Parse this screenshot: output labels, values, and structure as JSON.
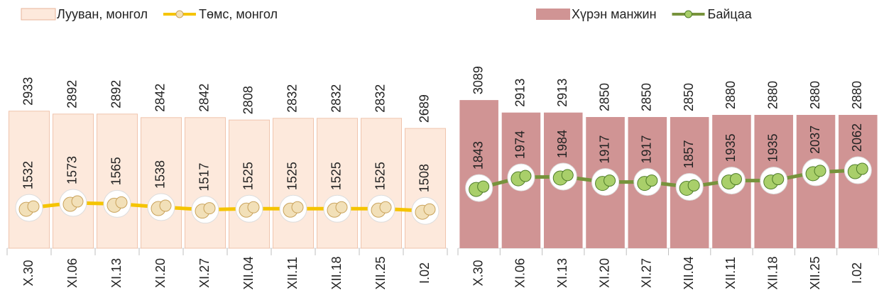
{
  "chart_data": [
    {
      "type": "combo",
      "categories": [
        "X.30",
        "XI.06",
        "XI.13",
        "XI.20",
        "XI.27",
        "XII.04",
        "XII.11",
        "XII.18",
        "XII.25",
        "I.02"
      ],
      "series": [
        {
          "name": "Лууван, монгол",
          "type": "bar",
          "color": "#fde9dc",
          "values": [
            2933,
            2892,
            2892,
            2842,
            2842,
            2808,
            2832,
            2832,
            2832,
            2689
          ]
        },
        {
          "name": "Төмс, монгол",
          "type": "line",
          "axis": "y2",
          "color": "#f5c400",
          "values": [
            1532,
            1573,
            1565,
            1538,
            1517,
            1525,
            1525,
            1525,
            1525,
            1508
          ]
        }
      ],
      "ylim": [
        1000,
        3400
      ],
      "y2lim": [
        1200,
        2600
      ]
    },
    {
      "type": "combo",
      "categories": [
        "X.30",
        "XI.06",
        "XI.13",
        "XI.20",
        "XI.27",
        "XII.04",
        "XII.11",
        "XII.18",
        "XII.25",
        "I.02"
      ],
      "series": [
        {
          "name": "Хүрэн манжин",
          "type": "bar",
          "color": "#d09494",
          "values": [
            3089,
            2913,
            2913,
            2850,
            2850,
            2850,
            2880,
            2880,
            2880,
            2880
          ]
        },
        {
          "name": "Байцаа",
          "type": "line",
          "axis": "y2",
          "color": "#77933c",
          "values": [
            1843,
            1974,
            1984,
            1917,
            1917,
            1857,
            1935,
            1935,
            2037,
            2062
          ]
        }
      ],
      "ylim": [
        1000,
        3400
      ],
      "y2lim": [
        1100,
        3200
      ]
    }
  ]
}
